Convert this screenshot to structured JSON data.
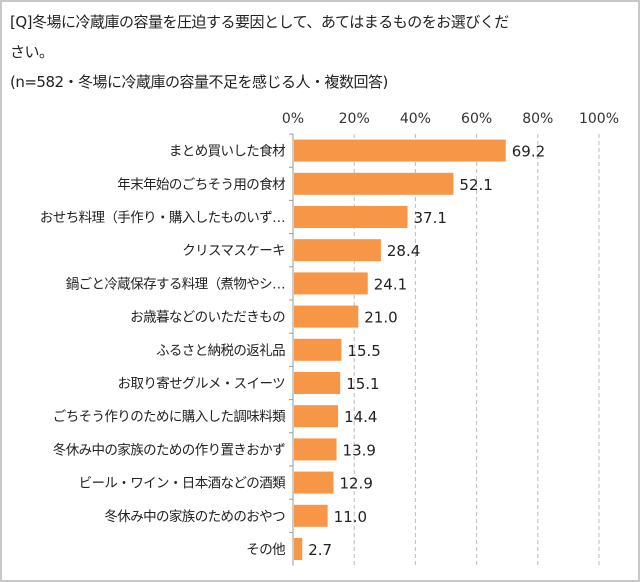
{
  "question_line1": "[Q]冬場に冷蔵庫の容量を圧迫する要因として、あてはまるものをお選びくだ",
  "question_line2": "さい。",
  "note": "(n=582・冬場に冷蔵庫の容量不足を感じる人・複数回答)",
  "chart_data": {
    "type": "bar",
    "orientation": "horizontal",
    "categories": [
      "まとめ買いした食材",
      "年末年始のごちそう用の食材",
      "おせち料理（手作り・購入したものいず…",
      "クリスマスケーキ",
      "鍋ごと冷蔵保存する料理（煮物やシ…",
      "お歳暮などのいただきもの",
      "ふるさと納税の返礼品",
      "お取り寄せグルメ・スイーツ",
      "ごちそう作りのために購入した調味料類",
      "冬休み中の家族のための作り置きおかず",
      "ビール・ワイン・日本酒などの酒類",
      "冬休み中の家族のためのおやつ",
      "その他"
    ],
    "values": [
      69.2,
      52.1,
      37.1,
      28.4,
      24.1,
      21.0,
      15.5,
      15.1,
      14.4,
      13.9,
      12.9,
      11.0,
      2.7
    ],
    "data_labels": [
      "69.2",
      "52.1",
      "37.1",
      "28.4",
      "24.1",
      "21.0",
      "15.5",
      "15.1",
      "14.4",
      "13.9",
      "12.9",
      "11.0",
      "2.7"
    ],
    "xlim": [
      0,
      100
    ],
    "x_ticks": [
      "0%",
      "20%",
      "40%",
      "60%",
      "80%",
      "100%"
    ],
    "x_axis_position": "top",
    "grid": "vertical dashed",
    "bar_color": "#f79646"
  }
}
